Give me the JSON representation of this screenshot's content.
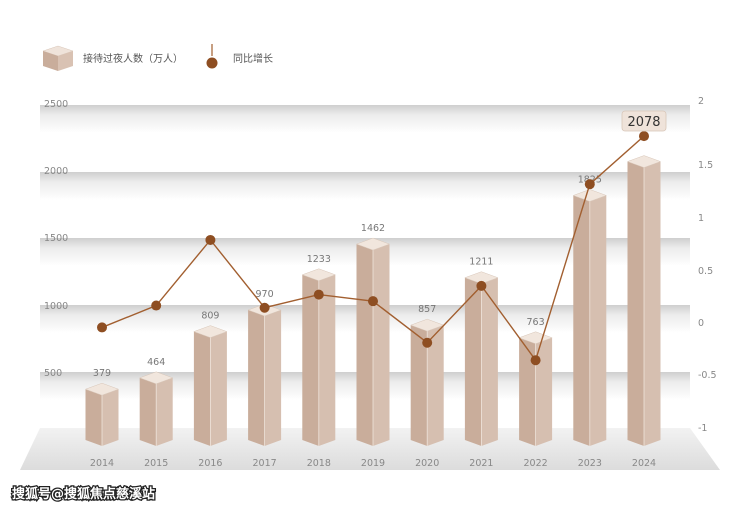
{
  "legend": {
    "bar_label": "接待过夜人数（万人）",
    "line_label": "同比增长"
  },
  "watermark": "搜狐号@搜狐焦点慈溪站",
  "colors": {
    "bar": "#c9ad9b",
    "bar_light": "#e6d6ca",
    "bar_top": "#f1e6dd",
    "line": "#a25f30",
    "marker": "#8e4e22",
    "band": "#dcdcdc",
    "axis_text": "#888888",
    "label_text": "#777777",
    "callout_bg": "#efe3da",
    "callout_text": "#333333"
  },
  "chart_data": {
    "type": "bar",
    "categories": [
      "2014",
      "2015",
      "2016",
      "2017",
      "2018",
      "2019",
      "2020",
      "2021",
      "2022",
      "2023",
      "2024"
    ],
    "series": [
      {
        "name": "接待过夜人数（万人）",
        "type": "bar",
        "axis": "left",
        "values": [
          379,
          464,
          809,
          970,
          1233,
          1462,
          857,
          1211,
          763,
          1825,
          2078
        ]
      },
      {
        "name": "同比增长",
        "type": "line",
        "axis": "right",
        "values": [
          -0.08,
          0.12,
          0.72,
          0.1,
          0.22,
          0.16,
          -0.22,
          0.3,
          -0.38,
          1.23,
          1.67
        ]
      }
    ],
    "highlighted_value": "2078",
    "y_left_ticks": [
      "500",
      "1000",
      "1500",
      "2000",
      "2500"
    ],
    "y_left_range": [
      0,
      2500
    ],
    "y_right_ticks": [
      "2",
      "1.5",
      "1",
      "0.5",
      "0",
      "-0.5",
      "-1"
    ],
    "y_right_range": [
      -1,
      2
    ],
    "grid": "banded"
  }
}
